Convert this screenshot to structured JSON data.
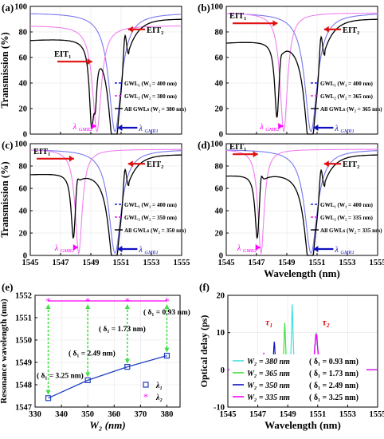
{
  "figure": {
    "colors": {
      "blue_dash": "#1c1cdc",
      "magenta_dash": "#e020e0",
      "black": "#000000",
      "red": "#e01010",
      "blue_solid": "#7878f0",
      "pink_solid": "#f080f0",
      "cyan": "#40e0e0",
      "green": "#40e040",
      "navy": "#1010c0",
      "magenta": "#ff00ff",
      "trend_blue": "#2040c0"
    }
  },
  "chart_data": [
    {
      "id": "a",
      "panel_label": "(a)",
      "type": "line",
      "xlim": [
        1545,
        1555
      ],
      "ylim": [
        0,
        100
      ],
      "yticks": [
        0,
        20,
        40,
        60,
        80,
        100
      ],
      "ylabel": "Transmission (%)",
      "legend": [
        "GWL₁ (W₁ = 400 nm)",
        "GWL₂ (W₂ = 380 nm)",
        "All GWLs (W₂ = 380 nm)"
      ],
      "annotations": [
        "EIT₁",
        "EIT₂",
        "λ GMR2",
        "λ GMR1"
      ],
      "series": [
        {
          "name": "GWL₁ (W₁ = 400 nm)",
          "dip_center": 1550.6,
          "dip_width": 0.5,
          "baseline": 95,
          "min": 2
        },
        {
          "name": "GWL₂ (W₂ = 380 nm)",
          "dip_center": 1549.4,
          "dip_width": 0.35,
          "baseline": 85,
          "min": 2
        },
        {
          "name": "All GWLs (W₂ = 380 nm)",
          "left_start": 74,
          "eit1": [
            1549.3,
            40
          ],
          "eit2": [
            1551.2,
            80
          ],
          "tail": 90
        }
      ]
    },
    {
      "id": "b",
      "panel_label": "(b)",
      "type": "line",
      "xlim": [
        1545,
        1555
      ],
      "ylim": [
        0,
        100
      ],
      "yticks": [
        0,
        20,
        40,
        60,
        80,
        100
      ],
      "legend": [
        "GWL₁ (W₁ = 400 nm)",
        "GWL₂ (W₂ = 365 nm)",
        "All GWLs (W₂ = 365 nm)"
      ],
      "annotations": [
        "EIT₁",
        "EIT₂",
        "λ GMR2",
        "λ GMR1"
      ],
      "series": [
        {
          "name": "GWL₁ (W₁ = 400 nm)",
          "dip_center": 1550.6,
          "dip_width": 0.5,
          "baseline": 95,
          "min": 2
        },
        {
          "name": "GWL₂ (W₂ = 365 nm)",
          "dip_center": 1548.8,
          "dip_width": 0.3,
          "baseline": 95,
          "min": 2
        },
        {
          "name": "All GWLs (W₂ = 365 nm)",
          "left_start": 72,
          "eit1": [
            1548.6,
            80
          ],
          "eit2": [
            1551.2,
            80
          ],
          "tail": 90
        }
      ]
    },
    {
      "id": "c",
      "panel_label": "(c)",
      "type": "line",
      "xlim": [
        1545,
        1555
      ],
      "ylim": [
        0,
        100
      ],
      "yticks": [
        0,
        20,
        40,
        60,
        80,
        100
      ],
      "ylabel": "Transmission (%)",
      "legend": [
        "GWL₁ (W₁ = 400 nm)",
        "GWL₂ (W₂ = 350 nm)",
        "All GWLs (W₂ = 350 nm)"
      ],
      "annotations": [
        "EIT₁",
        "EIT₂",
        "λ GMR2",
        "λ GMR1"
      ],
      "series": [
        {
          "name": "GWL₁ (W₁ = 400 nm)",
          "dip_center": 1550.6,
          "dip_width": 0.5,
          "baseline": 95,
          "min": 2
        },
        {
          "name": "GWL₂ (W₂ = 350 nm)",
          "dip_center": 1548.2,
          "dip_width": 0.28,
          "baseline": 95,
          "min": 2
        },
        {
          "name": "All GWLs (W₂ = 350 nm)",
          "left_start": 73,
          "eit1": [
            1548.1,
            86
          ],
          "eit2": [
            1551.2,
            80
          ],
          "tail": 90
        }
      ]
    },
    {
      "id": "d",
      "panel_label": "(d)",
      "type": "line",
      "xlim": [
        1545,
        1555
      ],
      "ylim": [
        0,
        100
      ],
      "yticks": [
        0,
        20,
        40,
        60,
        80,
        100
      ],
      "xticks": [
        1545,
        1547,
        1549,
        1551,
        1553,
        1555
      ],
      "xlabel": "Wavelength (nm)",
      "legend": [
        "GWL₁ (W₁ = 400 nm)",
        "GWL₂ (W₂ = 335 nm)",
        "All GWLs (W₂ = 335 nm)"
      ],
      "annotations": [
        "EIT₁",
        "EIT₂",
        "λ GMR2",
        "λ GMR1"
      ],
      "series": [
        {
          "name": "GWL₁ (W₁ = 400 nm)",
          "dip_center": 1550.6,
          "dip_width": 0.5,
          "baseline": 95,
          "min": 2
        },
        {
          "name": "GWL₂ (W₂ = 335 nm)",
          "dip_center": 1547.3,
          "dip_width": 0.25,
          "baseline": 95,
          "min": 2
        },
        {
          "name": "All GWLs (W₂ = 335 nm)",
          "left_start": 72,
          "eit1": [
            1547.3,
            88
          ],
          "eit2": [
            1551.2,
            80
          ],
          "tail": 90
        }
      ]
    },
    {
      "id": "e",
      "panel_label": "(e)",
      "type": "scatter",
      "xlabel": "W₂ (nm)",
      "ylabel": "Resonance wavelength (nm)",
      "xlim": [
        330,
        385
      ],
      "ylim": [
        1547,
        1552
      ],
      "xticks": [
        330,
        340,
        350,
        360,
        370,
        380
      ],
      "yticks": [
        1547,
        1548,
        1549,
        1550,
        1551,
        1552
      ],
      "x": [
        335,
        350,
        365,
        380
      ],
      "series": [
        {
          "name": "λ₁",
          "values": [
            1547.4,
            1548.2,
            1548.8,
            1549.3
          ]
        },
        {
          "name": "λ₂",
          "values": [
            1551.75,
            1551.75,
            1551.75,
            1551.75
          ]
        }
      ],
      "annotations": [
        "( δ₁ = 3.25 nm)",
        "( δ₁ = 2.49 nm)",
        "( δ₁ = 1.73 nm)",
        "( δ₁ = 0.93 nm)"
      ]
    },
    {
      "id": "f",
      "panel_label": "(f)",
      "type": "line",
      "xlabel": "Wavelength (nm)",
      "ylabel": "Optical delay (ps)",
      "xlim": [
        1545,
        1555
      ],
      "ylim": [
        -10,
        20
      ],
      "xticks": [
        1545,
        1547,
        1549,
        1551,
        1553,
        1555
      ],
      "yticks": [
        -10,
        0,
        10,
        20
      ],
      "annotations": [
        "τ₁",
        "τ₂"
      ],
      "series": [
        {
          "name": "W₂ = 380 nm",
          "delta": "( δ₁ = 0.93 nm)",
          "tau1_center": 1549.3,
          "tau1_peak": 18
        },
        {
          "name": "W₂ = 365 nm",
          "delta": "( δ₁ = 1.73 nm)",
          "tau1_center": 1548.8,
          "tau1_peak": 13
        },
        {
          "name": "W₂ = 350 nm",
          "delta": "( δ₁ = 2.49 nm)",
          "tau1_center": 1548.1,
          "tau1_peak": 8
        },
        {
          "name": "W₂ = 335 nm",
          "delta": "( δ₁ = 3.25 nm)",
          "tau1_center": 1547.4,
          "tau1_peak": 5
        }
      ],
      "tau2": {
        "center": 1550.9,
        "peak": 10
      }
    }
  ]
}
